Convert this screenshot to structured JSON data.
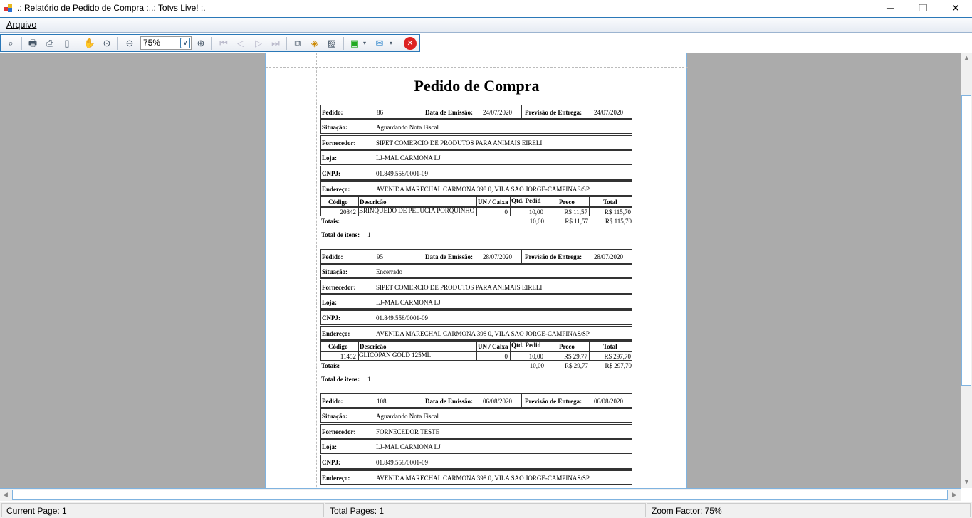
{
  "window": {
    "title": ".: Relatório de Pedido de Compra :..: Totvs Live! :.",
    "minimize": "─",
    "restore": "❐",
    "close": "✕"
  },
  "menu": {
    "arquivo": "Arquivo"
  },
  "toolbar": {
    "zoom_value": "75%",
    "icons": [
      "binoculars-icon",
      "print-setup-icon",
      "print-icon",
      "page-setup-icon",
      "hand-icon",
      "zoom-tool-icon",
      "zoom-out-icon",
      "zoom-in-icon",
      "first-page-icon",
      "prev-page-icon",
      "next-page-icon",
      "last-page-icon",
      "multi-page-icon",
      "background-color-icon",
      "watermark-icon",
      "save-icon",
      "email-icon",
      "close-icon"
    ]
  },
  "report": {
    "title": "Pedido de Compra",
    "labels": {
      "pedido": "Pedido:",
      "emissao": "Data de Emissão:",
      "previsao": "Previsão de Entrega:",
      "situacao": "Situação:",
      "fornecedor": "Fornecedor:",
      "loja": "Loja:",
      "cnpj": "CNPJ:",
      "endereco": "Endereço:",
      "codigo": "Código",
      "descricao": "Descricão",
      "un": "UN / Caixa",
      "qtd": "Qtd. Pedid",
      "preco": "Preco",
      "total": "Total",
      "totais": "Totais:",
      "total_itens": "Total de itens:"
    },
    "orders": [
      {
        "pedido": "86",
        "emissao": "24/07/2020",
        "previsao": "24/07/2020",
        "situacao": "Aguardando Nota Fiscal",
        "fornecedor": "SIPET COMERCIO DE PRODUTOS PARA ANIMAIS EIRELI",
        "loja": "LJ-MAL CARMONA LJ",
        "cnpj": "01.849.558/0001-09",
        "endereco": "AVENIDA MARECHAL CARMONA 398 0, VILA SAO JORGE-CAMPINAS/SP",
        "items": [
          {
            "codigo": "20842",
            "descricao": "BRINQUEDO DE PELUCIA PORQUINHO",
            "un": "0",
            "qtd": "10,00",
            "preco": "R$ 11,57",
            "total": "R$ 115,70"
          }
        ],
        "totais": {
          "qtd": "10,00",
          "preco": "R$ 11,57",
          "total": "R$ 115,70"
        },
        "total_itens": "1"
      },
      {
        "pedido": "95",
        "emissao": "28/07/2020",
        "previsao": "28/07/2020",
        "situacao": "Encerrado",
        "fornecedor": "SIPET COMERCIO DE PRODUTOS PARA ANIMAIS EIRELI",
        "loja": "LJ-MAL CARMONA LJ",
        "cnpj": "01.849.558/0001-09",
        "endereco": "AVENIDA MARECHAL CARMONA 398 0, VILA SAO JORGE-CAMPINAS/SP",
        "items": [
          {
            "codigo": "11452",
            "descricao": "GLICOPAN GOLD 125ML",
            "un": "0",
            "qtd": "10,00",
            "preco": "R$ 29,77",
            "total": "R$ 297,70"
          }
        ],
        "totais": {
          "qtd": "10,00",
          "preco": "R$ 29,77",
          "total": "R$ 297,70"
        },
        "total_itens": "1"
      },
      {
        "pedido": "108",
        "emissao": "06/08/2020",
        "previsao": "06/08/2020",
        "situacao": "Aguardando Nota Fiscal",
        "fornecedor": "FORNECEDOR TESTE",
        "loja": "LJ-MAL CARMONA LJ",
        "cnpj": "01.849.558/0001-09",
        "endereco": "AVENIDA MARECHAL CARMONA 398 0, VILA SAO JORGE-CAMPINAS/SP",
        "items": [],
        "totais": null,
        "total_itens": null
      }
    ]
  },
  "status": {
    "current_page": "Current Page: 1",
    "total_pages": "Total Pages: 1",
    "zoom_factor": "Zoom Factor: 75%"
  }
}
